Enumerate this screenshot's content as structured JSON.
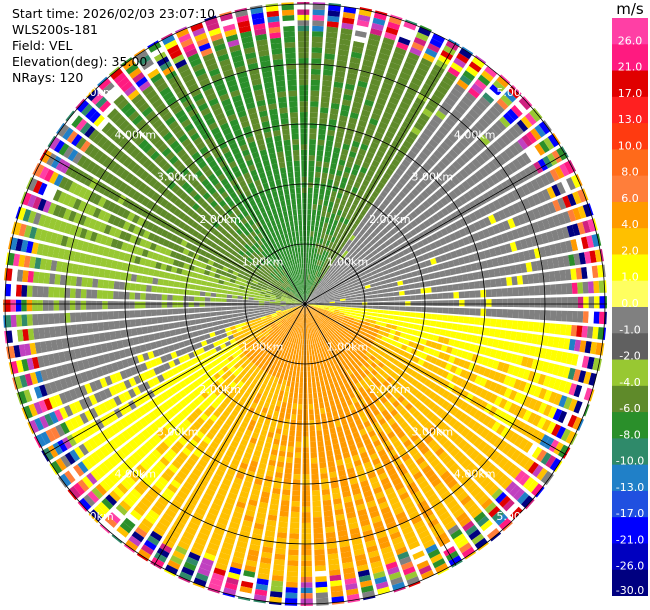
{
  "info": {
    "start_time": "Start time: 2026/02/03 23:07:10",
    "site": "WLS200s-181",
    "field": "Field: VEL",
    "elevation": "Elevation(deg): 35.00",
    "nrays": "NRays: 120"
  },
  "colorbar": {
    "unit": "m/s",
    "ticks": [
      "26.0",
      "21.0",
      "17.0",
      "13.0",
      "10.0",
      "8.0",
      "6.0",
      "4.0",
      "2.0",
      "1.0",
      "0.0",
      "-1.0",
      "-2.0",
      "-4.0",
      "-6.0",
      "-8.0",
      "-10.0",
      "-13.0",
      "-17.0",
      "-21.0",
      "-26.0",
      "-30.0"
    ],
    "bands": [
      "#ff3fa5",
      "#ff1a80",
      "#e00000",
      "#ff2020",
      "#ff3a10",
      "#ff6a1a",
      "#ff7e3a",
      "#ff9a00",
      "#ffc000",
      "#ffff00",
      "#ffff60",
      "#808080",
      "#606060",
      "#98c832",
      "#5f8a2a",
      "#2a8f2a",
      "#2f8a6a",
      "#2080c8",
      "#2050e0",
      "#0000ff",
      "#0000c0",
      "#000080",
      "#101050"
    ]
  },
  "chart_data": {
    "type": "ppi_radar",
    "field": "VEL",
    "units": "m/s",
    "elevation_deg": 35.0,
    "nrays": 120,
    "range_rings_km": [
      1,
      2,
      3,
      4,
      5
    ],
    "ring_labels": [
      "1.00km",
      "2.00km",
      "3.00km",
      "4.00km",
      "5.00km"
    ],
    "color_scale_m_s": [
      -30,
      -26,
      -21,
      -17,
      -13,
      -10,
      -8,
      -6,
      -4,
      -2,
      -1,
      0,
      1,
      2,
      4,
      6,
      8,
      10,
      13,
      17,
      21,
      26
    ],
    "sectors": [
      {
        "region": "north",
        "velocity_m_s": -6,
        "description": "green (approaching)"
      },
      {
        "region": "northwest",
        "velocity_m_s": -5
      },
      {
        "region": "east-northeast",
        "velocity_m_s": 0
      },
      {
        "region": "south-southeast",
        "velocity_m_s": 4
      },
      {
        "region": "south near center",
        "velocity_m_s": 6
      }
    ],
    "outer_noise_beyond_km": 4.5
  }
}
